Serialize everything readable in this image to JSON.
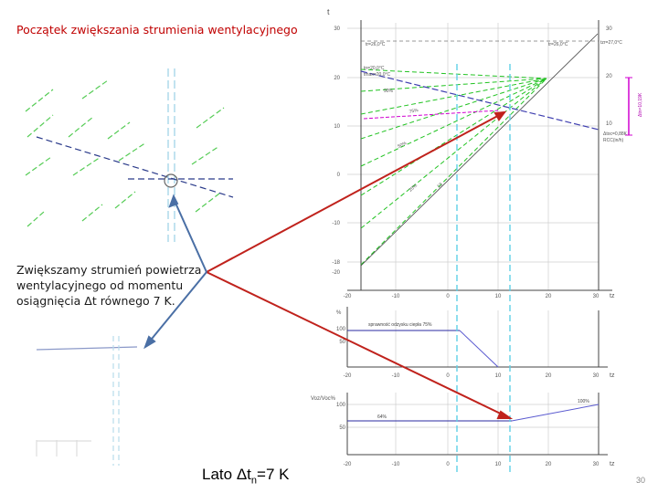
{
  "slide": {
    "title": "Początek zwiększania strumienia wentylacyjnego",
    "body": "Zwiększamy strumień powietrza wentylacyjnego od momentu osiągnięcia  Δt równego 7 K.",
    "footer_prefix": "Lato ",
    "footer_delta": "Δt",
    "footer_sub": "n",
    "footer_suffix": "=7 K",
    "page_number": "30"
  },
  "colors": {
    "title": "#c00000",
    "arrow_red": "#c0221c",
    "arrow_blue": "#4a6fa5",
    "green_lines": "#22c322",
    "cyan_line": "#5fd0e6",
    "purple_line": "#3f3fb0",
    "magenta": "#d000d0"
  },
  "chart_top": {
    "axis_title": "t",
    "y_ticks": [
      "30",
      "20",
      "10",
      "0",
      "-10",
      "-18",
      "-20"
    ],
    "right_ticks": [
      "30",
      "20",
      "10"
    ],
    "x_ticks": [
      "-20",
      "-10",
      "0",
      "10",
      "20",
      "30"
    ],
    "x_axis_label": "tz",
    "labels": {
      "tr_left": "tr=26,0°C",
      "tr_right": "tr=26,0°C",
      "tzr": "tzr=27,0°C",
      "tn_block": "tn=20,0°C",
      "tmax_block": "tmax=20,0°C",
      "p90": "90%",
      "p75": "75%",
      "p50": "50%",
      "p25": "25%",
      "diag": "13",
      "delta_vertical": "Δtn=10,19K",
      "dtoc": "Δtoc=0,88K",
      "rcc": "RCC(in/h)"
    }
  },
  "chart_mid": {
    "y_label": "%",
    "y_ticks": [
      "100",
      "50"
    ],
    "x_ticks": [
      "-20",
      "-10",
      "0",
      "10",
      "20",
      "30"
    ],
    "x_axis_label": "tz",
    "box_label": "sprawność odzysku ciepła 75%"
  },
  "chart_bot": {
    "y_label": "Voz/Voc%",
    "y_ticks": [
      "100",
      "50"
    ],
    "x_ticks": [
      "-20",
      "-10",
      "0",
      "10",
      "20",
      "30"
    ],
    "x_axis_label": "tz",
    "label_64": "64%",
    "label_100": "100%"
  }
}
